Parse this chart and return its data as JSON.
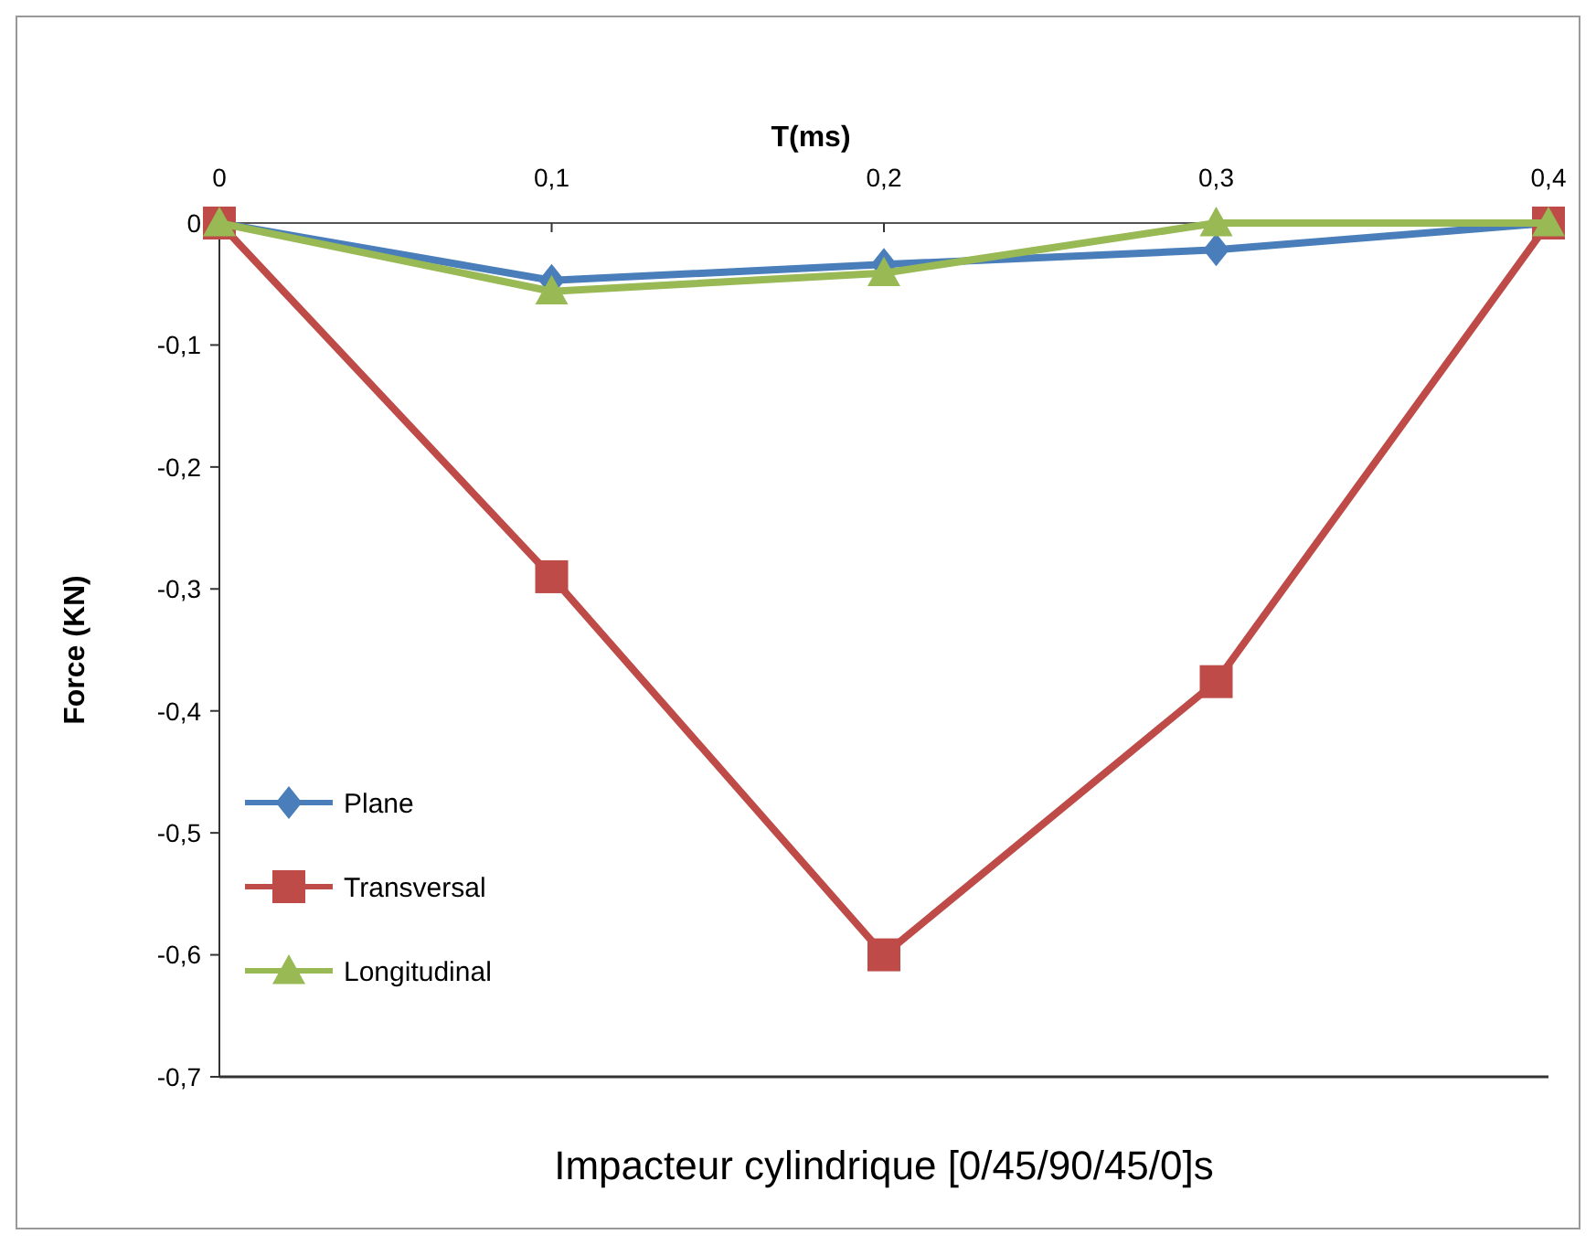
{
  "chart_data": {
    "type": "line",
    "title": "Impacteur cylindrique [0/45/90/45/0]s",
    "xlabel": "T(ms)",
    "ylabel": "Force (KN)",
    "x": [
      0,
      0.1,
      0.2,
      0.3,
      0.4
    ],
    "series": [
      {
        "name": "Plane",
        "color": "#4a7ebb",
        "marker": "diamond",
        "values": [
          0,
          -0.047,
          -0.034,
          -0.022,
          0
        ]
      },
      {
        "name": "Transversal",
        "color": "#be4b48",
        "marker": "square",
        "values": [
          0,
          -0.29,
          -0.6,
          -0.376,
          0
        ]
      },
      {
        "name": "Longitudinal",
        "color": "#98b954",
        "marker": "triangle",
        "values": [
          0,
          -0.056,
          -0.041,
          0,
          0
        ]
      }
    ],
    "xlim": [
      0,
      0.4
    ],
    "xticks": [
      {
        "value": 0,
        "label": "0"
      },
      {
        "value": 0.1,
        "label": "0,1"
      },
      {
        "value": 0.2,
        "label": "0,2"
      },
      {
        "value": 0.3,
        "label": "0,3"
      },
      {
        "value": 0.4,
        "label": "0,4"
      }
    ],
    "ylim": [
      -0.7,
      0
    ],
    "yticks": [
      {
        "value": 0,
        "label": "0"
      },
      {
        "value": -0.1,
        "label": "-0,1"
      },
      {
        "value": -0.2,
        "label": "-0,2"
      },
      {
        "value": -0.3,
        "label": "-0,3"
      },
      {
        "value": -0.4,
        "label": "-0,4"
      },
      {
        "value": -0.5,
        "label": "-0,5"
      },
      {
        "value": -0.6,
        "label": "-0,6"
      },
      {
        "value": -0.7,
        "label": "-0,7"
      }
    ],
    "grid": false,
    "legend": "bottom left"
  }
}
